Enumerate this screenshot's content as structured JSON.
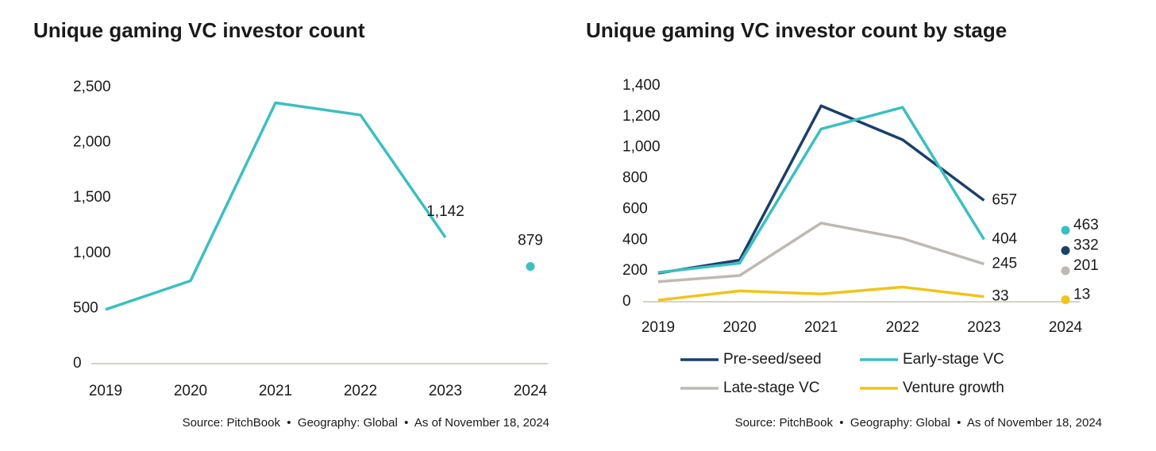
{
  "chart_data": [
    {
      "type": "line",
      "title": "Unique gaming VC investor count",
      "categories": [
        "2019",
        "2020",
        "2021",
        "2022",
        "2023",
        "2024"
      ],
      "values": [
        490,
        750,
        2360,
        2250,
        1142,
        879
      ],
      "value_labels": [
        null,
        null,
        null,
        null,
        "1,142",
        "879"
      ],
      "color": "#3bbfc1",
      "dot_last": true,
      "ylim": [
        0,
        2500
      ],
      "yticks": [
        0,
        500,
        {
          "value": 1000,
          "label": "1,000"
        },
        {
          "value": 1500,
          "label": "1,500"
        },
        {
          "value": 2000,
          "label": "2,000"
        },
        {
          "value": 2500,
          "label": "2,500"
        }
      ],
      "grid": false,
      "source": "Source: PitchBook  •  Geography: Global  •  As of November 18, 2024"
    },
    {
      "type": "line",
      "title": "Unique gaming VC investor count by stage",
      "categories": [
        "2019",
        "2020",
        "2021",
        "2022",
        "2023",
        "2024"
      ],
      "series": [
        {
          "name": "Pre-seed/seed",
          "color": "#1b3f6b",
          "values": [
            185,
            270,
            1270,
            1050,
            657,
            332
          ],
          "value_labels": [
            null,
            null,
            null,
            null,
            "657",
            "332"
          ]
        },
        {
          "name": "Early-stage VC",
          "color": "#3bbfc1",
          "values": [
            190,
            250,
            1120,
            1260,
            404,
            463
          ],
          "value_labels": [
            null,
            null,
            null,
            null,
            "404",
            "463"
          ]
        },
        {
          "name": "Late-stage VC",
          "color": "#bfb9b0",
          "values": [
            130,
            170,
            510,
            410,
            245,
            201
          ],
          "value_labels": [
            null,
            null,
            null,
            null,
            "245",
            "201"
          ]
        },
        {
          "name": "Venture growth",
          "color": "#f0c419",
          "values": [
            10,
            70,
            50,
            95,
            33,
            13
          ],
          "value_labels": [
            null,
            null,
            null,
            null,
            "33",
            "13"
          ]
        }
      ],
      "dot_last": true,
      "ylim": [
        0,
        1400
      ],
      "yticks": [
        0,
        200,
        400,
        600,
        800,
        {
          "value": 1000,
          "label": "1,000"
        },
        {
          "value": 1200,
          "label": "1,200"
        },
        {
          "value": 1400,
          "label": "1,400"
        }
      ],
      "grid": false,
      "source": "Source: PitchBook  •  Geography: Global  •  As of November 18, 2024"
    }
  ]
}
